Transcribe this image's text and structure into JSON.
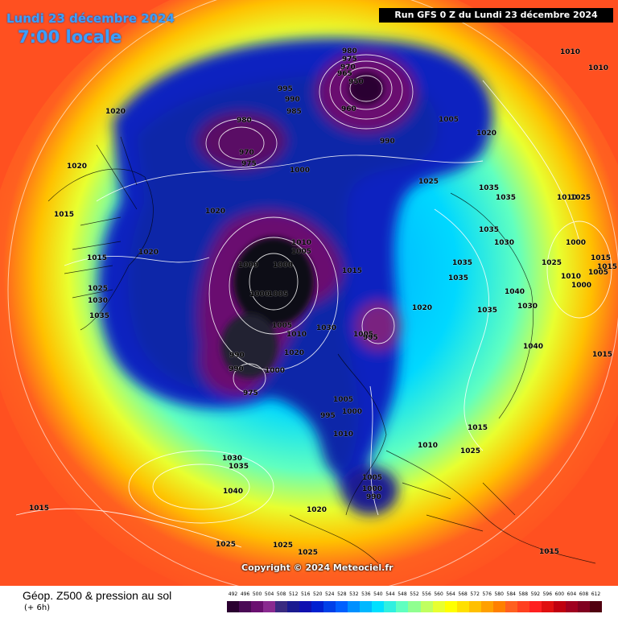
{
  "header": {
    "date": "Lundi 23 décembre 2024",
    "time": "7:00 locale",
    "run": "Run GFS 0 Z du Lundi 23 décembre 2024"
  },
  "copyright": "Copyright © 2024 Meteociel.fr",
  "footer": {
    "title": "Géop. Z500 & pression au sol",
    "subtitle": "(+ 6h)"
  },
  "legend": {
    "values": [
      "492",
      "496",
      "500",
      "504",
      "508",
      "512",
      "516",
      "520",
      "524",
      "528",
      "532",
      "536",
      "540",
      "544",
      "548",
      "552",
      "556",
      "560",
      "564",
      "568",
      "572",
      "576",
      "580",
      "584",
      "588",
      "592",
      "596",
      "600",
      "604",
      "608",
      "612"
    ],
    "colors": [
      "#2a0030",
      "#4a0a55",
      "#6a1070",
      "#8a2a90",
      "#3a2a80",
      "#1a1a90",
      "#1010b0",
      "#0020d0",
      "#0040e8",
      "#0060ff",
      "#0090ff",
      "#00b8ff",
      "#00e0ff",
      "#30f0e0",
      "#60ffc0",
      "#90ff90",
      "#c0ff60",
      "#e8ff30",
      "#ffff00",
      "#ffe000",
      "#ffc000",
      "#ffa000",
      "#ff8000",
      "#ff6020",
      "#ff4020",
      "#ff2020",
      "#e01010",
      "#c00010",
      "#a00020",
      "#800020",
      "#500010"
    ]
  },
  "pressure_labels": [
    {
      "t": "980"
    },
    {
      "t": "975"
    },
    {
      "t": "970"
    },
    {
      "t": "965"
    },
    {
      "t": "960"
    },
    {
      "t": "950"
    },
    {
      "t": "995"
    },
    {
      "t": "990"
    },
    {
      "t": "985"
    },
    {
      "t": "980"
    },
    {
      "t": "970"
    },
    {
      "t": "975"
    },
    {
      "t": "1000"
    },
    {
      "t": "1020"
    },
    {
      "t": "1020"
    },
    {
      "t": "1010"
    },
    {
      "t": "1010"
    },
    {
      "t": "1005"
    },
    {
      "t": "1020"
    },
    {
      "t": "990"
    },
    {
      "t": "1025"
    },
    {
      "t": "1035"
    },
    {
      "t": "1035"
    },
    {
      "t": "1010"
    },
    {
      "t": "1025"
    },
    {
      "t": "1035"
    },
    {
      "t": "1030"
    },
    {
      "t": "1000"
    },
    {
      "t": "1035"
    },
    {
      "t": "1025"
    },
    {
      "t": "1015"
    },
    {
      "t": "1005"
    },
    {
      "t": "1015"
    },
    {
      "t": "1035"
    },
    {
      "t": "1040"
    },
    {
      "t": "1010"
    },
    {
      "t": "1000"
    },
    {
      "t": "1030"
    },
    {
      "t": "1020"
    },
    {
      "t": "1035"
    },
    {
      "t": "1040"
    },
    {
      "t": "1015"
    },
    {
      "t": "1015"
    },
    {
      "t": "1020"
    },
    {
      "t": "1025"
    },
    {
      "t": "1030"
    },
    {
      "t": "1035"
    },
    {
      "t": "1020"
    },
    {
      "t": "1015"
    },
    {
      "t": "1000"
    },
    {
      "t": "1000"
    },
    {
      "t": "1010"
    },
    {
      "t": "1005"
    },
    {
      "t": "1000"
    },
    {
      "t": "1005"
    },
    {
      "t": "1015"
    },
    {
      "t": "1005"
    },
    {
      "t": "1010"
    },
    {
      "t": "1020"
    },
    {
      "t": "1030"
    },
    {
      "t": "1005"
    },
    {
      "t": "995"
    },
    {
      "t": "1000"
    },
    {
      "t": "990"
    },
    {
      "t": "990"
    },
    {
      "t": "975"
    },
    {
      "t": "1005"
    },
    {
      "t": "1000"
    },
    {
      "t": "995"
    },
    {
      "t": "1010"
    },
    {
      "t": "1015"
    },
    {
      "t": "1025"
    },
    {
      "t": "1005"
    },
    {
      "t": "1000"
    },
    {
      "t": "990"
    },
    {
      "t": "1010"
    },
    {
      "t": "1030"
    },
    {
      "t": "1035"
    },
    {
      "t": "1040"
    },
    {
      "t": "1015"
    },
    {
      "t": "1020"
    },
    {
      "t": "1025"
    },
    {
      "t": "1025"
    },
    {
      "t": "1025"
    },
    {
      "t": "1015"
    }
  ]
}
